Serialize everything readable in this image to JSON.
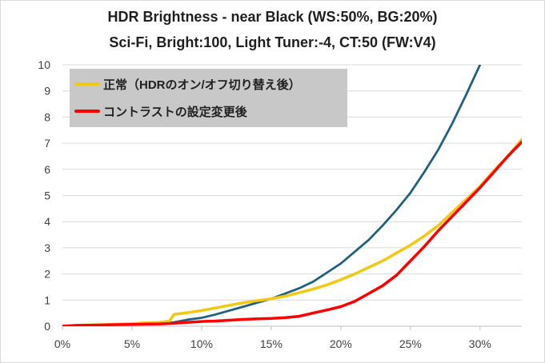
{
  "chart_data": {
    "type": "line",
    "title": "HDR Brightness - near Black (WS:50%, BG:20%)",
    "subtitle": "Sci-Fi, Bright:100, Light Tuner:-4, CT:50 (FW:V4)",
    "xlim": [
      0,
      33
    ],
    "ylim": [
      0,
      10
    ],
    "x_ticks": [
      0,
      5,
      10,
      15,
      20,
      25,
      30
    ],
    "x_tick_labels": [
      "0%",
      "5%",
      "10%",
      "15%",
      "20%",
      "25%",
      "30%"
    ],
    "y_ticks": [
      0,
      1,
      2,
      3,
      4,
      5,
      6,
      7,
      8,
      9,
      10
    ],
    "y_tick_labels": [
      "0",
      "1",
      "2",
      "3",
      "4",
      "5",
      "6",
      "7",
      "8",
      "9",
      "10"
    ],
    "grid": "horizontal",
    "legend_placement": "top-left",
    "series": [
      {
        "color": "#1f5f7f",
        "x": [
          0,
          1,
          2,
          3,
          4,
          5,
          6,
          7,
          8,
          9,
          10,
          11,
          12,
          13,
          14,
          15,
          16,
          17,
          18,
          19,
          20,
          21,
          22,
          23,
          24,
          25,
          26,
          27,
          28,
          29,
          30
        ],
        "y": [
          0,
          0.03,
          0.04,
          0.05,
          0.06,
          0.08,
          0.1,
          0.12,
          0.15,
          0.25,
          0.32,
          0.45,
          0.6,
          0.75,
          0.9,
          1.05,
          1.25,
          1.45,
          1.7,
          2.05,
          2.4,
          2.85,
          3.3,
          3.85,
          4.45,
          5.1,
          5.9,
          6.75,
          7.75,
          8.85,
          10.0
        ]
      },
      {
        "name": "正常（HDRのオン/オフ切り替え後）",
        "color": "#f2c811",
        "x": [
          0,
          1,
          2,
          3,
          4,
          5,
          6,
          7,
          7.7,
          8,
          9,
          10,
          11,
          12,
          13,
          14,
          15,
          16,
          17,
          18,
          19,
          20,
          21,
          22,
          23,
          24,
          25,
          26,
          27,
          28,
          29,
          30,
          31,
          32,
          33
        ],
        "y": [
          0,
          0.04,
          0.05,
          0.06,
          0.08,
          0.1,
          0.13,
          0.15,
          0.2,
          0.45,
          0.52,
          0.6,
          0.7,
          0.8,
          0.9,
          0.98,
          1.05,
          1.15,
          1.28,
          1.42,
          1.58,
          1.78,
          2.0,
          2.25,
          2.5,
          2.8,
          3.1,
          3.45,
          3.85,
          4.35,
          4.85,
          5.35,
          5.95,
          6.5,
          7.15
        ]
      },
      {
        "name": "コントラストの設定変更後",
        "color": "#ff0000",
        "x": [
          0,
          1,
          2,
          3,
          4,
          5,
          6,
          7,
          8,
          9,
          10,
          11,
          12,
          13,
          14,
          15,
          16,
          17,
          18,
          19,
          20,
          21,
          22,
          23,
          24,
          25,
          26,
          27,
          28,
          29,
          30,
          31,
          32,
          33
        ],
        "y": [
          0,
          0.03,
          0.04,
          0.05,
          0.06,
          0.07,
          0.08,
          0.09,
          0.11,
          0.15,
          0.18,
          0.2,
          0.23,
          0.26,
          0.28,
          0.3,
          0.33,
          0.38,
          0.5,
          0.62,
          0.75,
          0.95,
          1.25,
          1.55,
          1.95,
          2.5,
          3.05,
          3.65,
          4.2,
          4.75,
          5.3,
          5.9,
          6.5,
          7.05
        ]
      }
    ]
  },
  "colors": {
    "legend_bg": "#c8c8c8",
    "grid": "#d9d9d9",
    "axis": "#bfbfbf"
  }
}
